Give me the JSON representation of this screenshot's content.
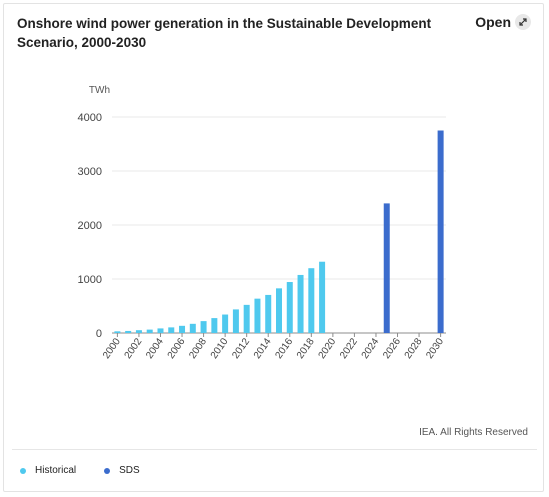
{
  "title": "Onshore wind power generation in the Sustainable Development Scenario, 2000-2030",
  "open_label": "Open",
  "open_icon": "expand-arrow-icon",
  "copyright": "IEA. All Rights Reserved",
  "colors": {
    "historical": "#4fc9ee",
    "sds": "#3b6ccd"
  },
  "chart_data": {
    "type": "bar",
    "unit_label": "TWh",
    "ylim": [
      0,
      4000
    ],
    "yticks": [
      0,
      1000,
      2000,
      3000,
      4000
    ],
    "xticks": [
      "2000",
      "2002",
      "2004",
      "2006",
      "2008",
      "2010",
      "2012",
      "2014",
      "2016",
      "2018",
      "2020",
      "2022",
      "2024",
      "2026",
      "2028",
      "2030"
    ],
    "categories": [
      "2000",
      "2001",
      "2002",
      "2003",
      "2004",
      "2005",
      "2006",
      "2007",
      "2008",
      "2009",
      "2010",
      "2011",
      "2012",
      "2013",
      "2014",
      "2015",
      "2016",
      "2017",
      "2018",
      "2019",
      "2020",
      "2021",
      "2022",
      "2023",
      "2024",
      "2025",
      "2026",
      "2027",
      "2028",
      "2029",
      "2030"
    ],
    "series": [
      {
        "name": "Historical",
        "values": [
          31,
          38,
          52,
          63,
          85,
          104,
          133,
          170,
          220,
          276,
          342,
          437,
          521,
          636,
          705,
          827,
          944,
          1075,
          1200,
          1320,
          null,
          null,
          null,
          null,
          null,
          null,
          null,
          null,
          null,
          null,
          null
        ]
      },
      {
        "name": "SDS",
        "values": [
          null,
          null,
          null,
          null,
          null,
          null,
          null,
          null,
          null,
          null,
          null,
          null,
          null,
          null,
          null,
          null,
          null,
          null,
          null,
          null,
          null,
          null,
          null,
          null,
          null,
          2400,
          null,
          null,
          null,
          null,
          3750
        ]
      }
    ],
    "grid": true,
    "legend_position": "bottom-left"
  }
}
